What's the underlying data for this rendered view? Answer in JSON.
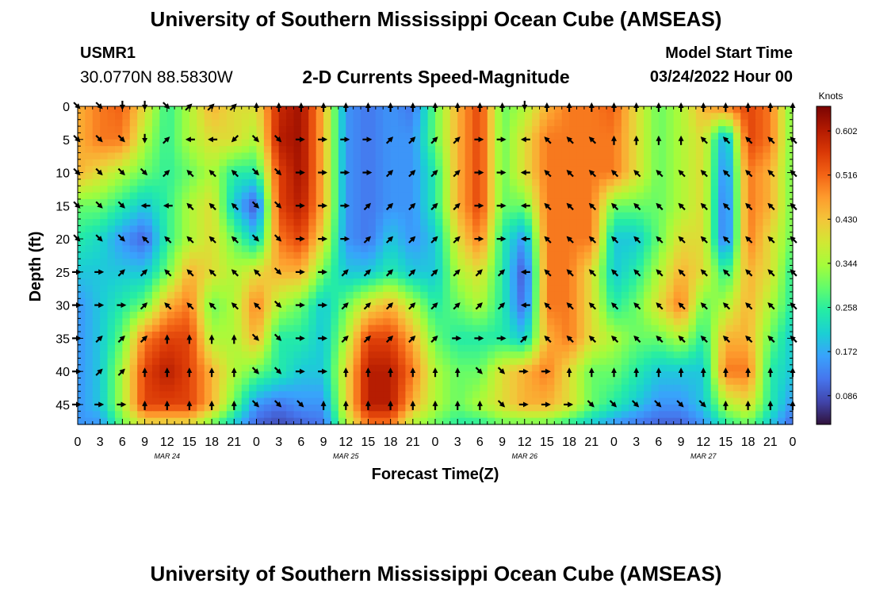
{
  "header": {
    "title": "University of Southern Mississippi Ocean Cube (AMSEAS)",
    "station": "USMR1",
    "coords": "30.0770N  88.5830W",
    "subtitle": "2-D Currents Speed-Magnitude",
    "model_start_label": "Model Start Time",
    "model_start_value": "03/24/2022 Hour 00"
  },
  "footer": {
    "title": "University of Southern Mississippi Ocean Cube (AMSEAS)"
  },
  "chart_data": {
    "type": "heatmap",
    "title": "2-D Currents Speed-Magnitude",
    "xlabel": "Forecast Time(Z)",
    "ylabel": "Depth (ft)",
    "x_ticks": [
      "0",
      "3",
      "6",
      "9",
      "12",
      "15",
      "18",
      "21",
      "0",
      "3",
      "6",
      "9",
      "12",
      "15",
      "18",
      "21",
      "0",
      "3",
      "6",
      "9",
      "12",
      "15",
      "18",
      "21",
      "0",
      "3",
      "6",
      "9",
      "12",
      "15",
      "18",
      "21",
      "0"
    ],
    "date_labels": [
      {
        "label": "MAR 24",
        "hour": 12
      },
      {
        "label": "MAR 25",
        "hour": 36
      },
      {
        "label": "MAR 26",
        "hour": 60
      },
      {
        "label": "MAR 27",
        "hour": 84
      }
    ],
    "x_range_hours": [
      0,
      96
    ],
    "y_ticks": [
      "0",
      "5",
      "10",
      "15",
      "20",
      "25",
      "30",
      "35",
      "40",
      "45"
    ],
    "y_range": [
      0,
      48
    ],
    "colorbar": {
      "unit": "Knots",
      "ticks": [
        "0.086",
        "0.172",
        "0.258",
        "0.344",
        "0.430",
        "0.516",
        "0.602"
      ],
      "range": [
        0.03,
        0.65
      ],
      "colors": [
        "#30123b",
        "#4145ab",
        "#4675ed",
        "#39a2fc",
        "#1bcfd4",
        "#24eca6",
        "#61fc6c",
        "#a4fc3b",
        "#d1e834",
        "#f3c63a",
        "#fe9b2d",
        "#f36315",
        "#d93806",
        "#b11901",
        "#7a0402"
      ]
    },
    "speed_field": {
      "times_hours": [
        0,
        3,
        6,
        9,
        12,
        15,
        18,
        21,
        24,
        27,
        30,
        33,
        36,
        39,
        42,
        45,
        48,
        51,
        54,
        57,
        60,
        63,
        66,
        69,
        72,
        75,
        78,
        81,
        84,
        87,
        90,
        93,
        96
      ],
      "depths_ft": [
        0,
        5,
        10,
        15,
        20,
        25,
        30,
        35,
        40,
        45,
        48
      ],
      "knots": [
        [
          0.45,
          0.5,
          0.52,
          0.4,
          0.26,
          0.35,
          0.45,
          0.4,
          0.4,
          0.58,
          0.62,
          0.45,
          0.15,
          0.12,
          0.15,
          0.12,
          0.3,
          0.45,
          0.55,
          0.3,
          0.35,
          0.45,
          0.5,
          0.5,
          0.52,
          0.4,
          0.3,
          0.35,
          0.45,
          0.5,
          0.55,
          0.5,
          0.3
        ],
        [
          0.45,
          0.5,
          0.5,
          0.35,
          0.26,
          0.35,
          0.4,
          0.4,
          0.35,
          0.6,
          0.62,
          0.45,
          0.15,
          0.12,
          0.15,
          0.15,
          0.3,
          0.45,
          0.55,
          0.3,
          0.4,
          0.5,
          0.5,
          0.5,
          0.5,
          0.4,
          0.3,
          0.35,
          0.4,
          0.15,
          0.55,
          0.5,
          0.3
        ],
        [
          0.45,
          0.4,
          0.35,
          0.3,
          0.26,
          0.3,
          0.35,
          0.25,
          0.25,
          0.55,
          0.62,
          0.45,
          0.15,
          0.12,
          0.15,
          0.15,
          0.25,
          0.45,
          0.55,
          0.3,
          0.4,
          0.5,
          0.5,
          0.5,
          0.5,
          0.4,
          0.3,
          0.35,
          0.4,
          0.12,
          0.5,
          0.45,
          0.3
        ],
        [
          0.3,
          0.3,
          0.25,
          0.2,
          0.26,
          0.35,
          0.4,
          0.2,
          0.08,
          0.55,
          0.6,
          0.45,
          0.15,
          0.12,
          0.15,
          0.15,
          0.25,
          0.45,
          0.55,
          0.3,
          0.3,
          0.5,
          0.5,
          0.5,
          0.3,
          0.3,
          0.3,
          0.35,
          0.4,
          0.1,
          0.5,
          0.45,
          0.3
        ],
        [
          0.25,
          0.22,
          0.15,
          0.1,
          0.26,
          0.35,
          0.4,
          0.3,
          0.2,
          0.5,
          0.55,
          0.4,
          0.15,
          0.12,
          0.2,
          0.15,
          0.2,
          0.4,
          0.5,
          0.25,
          0.15,
          0.5,
          0.5,
          0.5,
          0.2,
          0.2,
          0.3,
          0.4,
          0.4,
          0.1,
          0.5,
          0.4,
          0.3
        ],
        [
          0.2,
          0.2,
          0.2,
          0.2,
          0.3,
          0.45,
          0.4,
          0.35,
          0.4,
          0.45,
          0.45,
          0.3,
          0.2,
          0.2,
          0.25,
          0.2,
          0.2,
          0.35,
          0.4,
          0.25,
          0.08,
          0.5,
          0.5,
          0.4,
          0.2,
          0.25,
          0.35,
          0.45,
          0.4,
          0.25,
          0.45,
          0.4,
          0.25
        ],
        [
          0.15,
          0.2,
          0.25,
          0.3,
          0.45,
          0.5,
          0.3,
          0.35,
          0.5,
          0.35,
          0.3,
          0.2,
          0.3,
          0.4,
          0.45,
          0.35,
          0.25,
          0.3,
          0.35,
          0.25,
          0.1,
          0.5,
          0.5,
          0.4,
          0.25,
          0.3,
          0.4,
          0.5,
          0.3,
          0.35,
          0.45,
          0.35,
          0.25
        ],
        [
          0.15,
          0.2,
          0.3,
          0.5,
          0.55,
          0.55,
          0.35,
          0.35,
          0.45,
          0.25,
          0.25,
          0.2,
          0.35,
          0.55,
          0.55,
          0.45,
          0.3,
          0.25,
          0.25,
          0.25,
          0.2,
          0.45,
          0.5,
          0.4,
          0.35,
          0.3,
          0.3,
          0.35,
          0.25,
          0.45,
          0.45,
          0.3,
          0.2
        ],
        [
          0.15,
          0.2,
          0.35,
          0.55,
          0.6,
          0.55,
          0.45,
          0.35,
          0.3,
          0.25,
          0.2,
          0.2,
          0.4,
          0.6,
          0.6,
          0.5,
          0.35,
          0.3,
          0.3,
          0.4,
          0.45,
          0.5,
          0.4,
          0.3,
          0.3,
          0.25,
          0.2,
          0.2,
          0.2,
          0.5,
          0.5,
          0.25,
          0.2
        ],
        [
          0.15,
          0.2,
          0.35,
          0.55,
          0.55,
          0.55,
          0.45,
          0.3,
          0.15,
          0.12,
          0.15,
          0.15,
          0.4,
          0.6,
          0.6,
          0.45,
          0.35,
          0.3,
          0.35,
          0.4,
          0.45,
          0.45,
          0.4,
          0.3,
          0.25,
          0.2,
          0.15,
          0.15,
          0.2,
          0.35,
          0.4,
          0.25,
          0.15
        ],
        [
          0.15,
          0.15,
          0.3,
          0.4,
          0.4,
          0.4,
          0.3,
          0.2,
          0.1,
          0.08,
          0.1,
          0.12,
          0.35,
          0.5,
          0.5,
          0.35,
          0.3,
          0.25,
          0.25,
          0.3,
          0.3,
          0.3,
          0.25,
          0.2,
          0.15,
          0.12,
          0.1,
          0.1,
          0.15,
          0.25,
          0.3,
          0.2,
          0.1
        ]
      ]
    },
    "vectors": {
      "times_hours": [
        0,
        3,
        6,
        9,
        12,
        15,
        18,
        21,
        24,
        27,
        30,
        33,
        36,
        39,
        42,
        45,
        48,
        51,
        54,
        57,
        60,
        63,
        66,
        69,
        72,
        75,
        78,
        81,
        84,
        87,
        90,
        93,
        96
      ],
      "depths_ft": [
        0,
        5,
        10,
        15,
        20,
        25,
        30,
        35,
        40,
        45
      ],
      "direction_deg": [
        [
          135,
          135,
          180,
          180,
          135,
          45,
          45,
          45,
          0,
          0,
          0,
          0,
          0,
          0,
          0,
          0,
          0,
          0,
          0,
          0,
          180,
          0,
          0,
          0,
          0,
          0,
          0,
          0,
          0,
          0,
          0,
          0,
          0
        ],
        [
          135,
          135,
          135,
          180,
          45,
          270,
          270,
          225,
          135,
          135,
          90,
          90,
          90,
          90,
          45,
          45,
          45,
          45,
          90,
          90,
          270,
          315,
          315,
          315,
          0,
          0,
          0,
          0,
          315,
          315,
          315,
          315,
          315
        ],
        [
          135,
          135,
          135,
          135,
          45,
          315,
          315,
          315,
          135,
          135,
          90,
          90,
          90,
          90,
          45,
          45,
          45,
          45,
          90,
          90,
          270,
          315,
          315,
          315,
          315,
          315,
          315,
          315,
          315,
          315,
          315,
          315,
          315
        ],
        [
          135,
          135,
          135,
          270,
          270,
          315,
          315,
          315,
          135,
          135,
          90,
          90,
          90,
          45,
          45,
          45,
          45,
          45,
          90,
          90,
          270,
          315,
          315,
          315,
          315,
          315,
          315,
          315,
          315,
          315,
          315,
          315,
          315
        ],
        [
          135,
          135,
          135,
          315,
          315,
          315,
          315,
          315,
          135,
          135,
          90,
          90,
          90,
          45,
          45,
          45,
          45,
          45,
          90,
          90,
          270,
          315,
          315,
          315,
          315,
          315,
          315,
          315,
          315,
          315,
          315,
          315,
          315
        ],
        [
          90,
          90,
          45,
          45,
          315,
          315,
          315,
          315,
          315,
          135,
          90,
          90,
          45,
          45,
          45,
          45,
          45,
          45,
          45,
          45,
          270,
          315,
          315,
          315,
          315,
          315,
          315,
          315,
          315,
          315,
          315,
          315,
          315
        ],
        [
          90,
          90,
          90,
          45,
          315,
          315,
          315,
          315,
          315,
          135,
          90,
          90,
          45,
          45,
          45,
          45,
          45,
          45,
          45,
          45,
          270,
          315,
          315,
          315,
          315,
          315,
          315,
          315,
          315,
          315,
          315,
          315,
          315
        ],
        [
          90,
          45,
          45,
          45,
          0,
          0,
          0,
          0,
          135,
          135,
          90,
          90,
          45,
          45,
          45,
          45,
          45,
          90,
          90,
          90,
          45,
          315,
          315,
          315,
          315,
          315,
          315,
          315,
          315,
          315,
          315,
          315,
          315
        ],
        [
          90,
          45,
          45,
          0,
          0,
          0,
          0,
          0,
          135,
          135,
          90,
          90,
          0,
          0,
          0,
          0,
          0,
          0,
          135,
          135,
          90,
          90,
          0,
          0,
          0,
          0,
          0,
          0,
          0,
          0,
          0,
          0,
          0
        ],
        [
          90,
          90,
          90,
          0,
          0,
          0,
          0,
          0,
          135,
          135,
          135,
          0,
          0,
          0,
          0,
          0,
          0,
          0,
          0,
          135,
          90,
          90,
          90,
          135,
          135,
          135,
          135,
          135,
          135,
          0,
          0,
          0,
          0
        ]
      ]
    }
  }
}
